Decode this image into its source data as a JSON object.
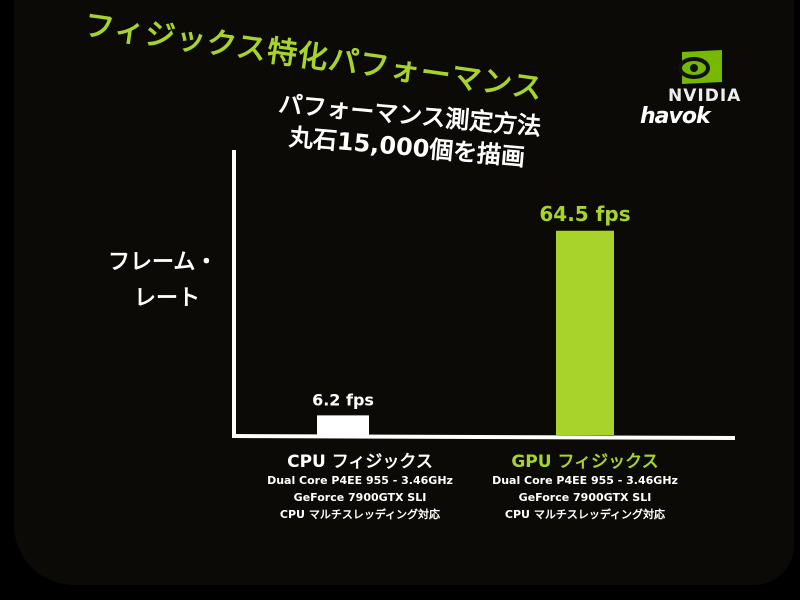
{
  "slide": {
    "title": "フィジックス特化パフォーマンス",
    "subtitle_line1": "パフォーマンス測定方法",
    "subtitle_line2": "丸石15,000個を描画",
    "logos": {
      "nvidia": "NVIDIA",
      "havok": "havok"
    }
  },
  "colors": {
    "accent": "#a8d32a",
    "cpu_bar": "#ffffff",
    "gpu_bar": "#a8d32a",
    "background": "#0b0a06"
  },
  "chart_data": {
    "type": "bar",
    "ylabel_line1": "フレーム・",
    "ylabel_line2": "レート",
    "categories": [
      "CPU フィジックス",
      "GPU フィジックス"
    ],
    "values": [
      6.2,
      64.5
    ],
    "data_labels": [
      "6.2 fps",
      "64.5 fps"
    ],
    "category_details": [
      [
        "Dual Core P4EE 955 - 3.46GHz",
        "GeForce 7900GTX SLI",
        "CPU マルチスレッディング対応"
      ],
      [
        "Dual Core P4EE 955 - 3.46GHz",
        "GeForce 7900GTX SLI",
        "CPU マルチスレッディング対応"
      ]
    ],
    "ylim": [
      0,
      90
    ],
    "grid": false,
    "legend": "none"
  }
}
